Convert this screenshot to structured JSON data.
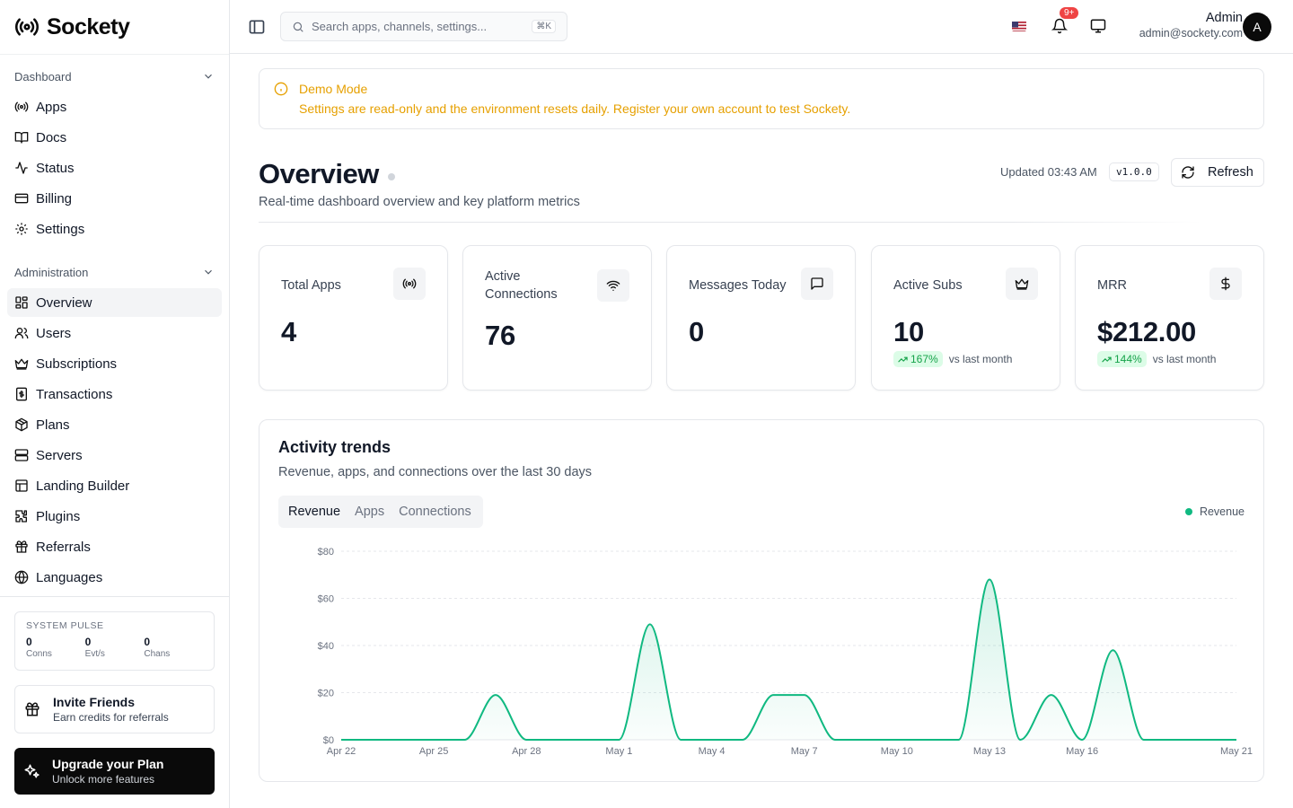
{
  "brand": {
    "name": "Sockety"
  },
  "sidebar": {
    "groups": [
      {
        "label": "Dashboard",
        "items": [
          {
            "label": "Apps",
            "icon": "broadcast-icon"
          },
          {
            "label": "Docs",
            "icon": "book-icon"
          },
          {
            "label": "Status",
            "icon": "activity-icon"
          },
          {
            "label": "Billing",
            "icon": "credit-card-icon"
          },
          {
            "label": "Settings",
            "icon": "gear-icon"
          }
        ]
      },
      {
        "label": "Administration",
        "items": [
          {
            "label": "Overview",
            "icon": "layout-dashboard-icon",
            "active": true
          },
          {
            "label": "Users",
            "icon": "users-icon"
          },
          {
            "label": "Subscriptions",
            "icon": "crown-icon"
          },
          {
            "label": "Transactions",
            "icon": "receipt-icon"
          },
          {
            "label": "Plans",
            "icon": "package-icon"
          },
          {
            "label": "Servers",
            "icon": "server-icon"
          },
          {
            "label": "Landing Builder",
            "icon": "layout-icon"
          },
          {
            "label": "Plugins",
            "icon": "puzzle-icon"
          },
          {
            "label": "Referrals",
            "icon": "gift-icon"
          },
          {
            "label": "Languages",
            "icon": "globe-icon"
          }
        ]
      }
    ],
    "pulse": {
      "title": "SYSTEM PULSE",
      "stats": [
        {
          "value": "0",
          "label": "Conns"
        },
        {
          "value": "0",
          "label": "Evt/s"
        },
        {
          "value": "0",
          "label": "Chans"
        }
      ]
    },
    "invite": {
      "title": "Invite Friends",
      "subtitle": "Earn credits for referrals"
    },
    "upgrade": {
      "title": "Upgrade your Plan",
      "subtitle": "Unlock more features"
    }
  },
  "header": {
    "search_placeholder": "Search apps, channels, settings...",
    "search_shortcut": "⌘K",
    "notifications_badge": "9+",
    "user": {
      "name": "Admin",
      "email": "admin@sockety.com",
      "avatar_letter": "A"
    }
  },
  "demo_banner": {
    "title": "Demo Mode",
    "text": "Settings are read-only and the environment resets daily. Register your own account to test Sockety.",
    "color": "#e6a000"
  },
  "overview": {
    "title": "Overview",
    "subtitle": "Real-time dashboard overview and key platform metrics",
    "updated": "Updated 03:43 AM",
    "version": "v1.0.0",
    "refresh_label": "Refresh"
  },
  "stats": [
    {
      "title": "Total Apps",
      "value": "4",
      "icon": "broadcast-icon"
    },
    {
      "title": "Active Connections",
      "value": "76",
      "icon": "wifi-icon"
    },
    {
      "title": "Messages Today",
      "value": "0",
      "icon": "message-square-icon"
    },
    {
      "title": "Active Subs",
      "value": "10",
      "icon": "crown-icon",
      "trend": "167%",
      "trend_label": "vs last month"
    },
    {
      "title": "MRR",
      "value": "$212.00",
      "icon": "dollar-icon",
      "trend": "144%",
      "trend_label": "vs last month"
    }
  ],
  "activity": {
    "title": "Activity trends",
    "subtitle": "Revenue, apps, and connections over the last 30 days",
    "tabs": [
      "Revenue",
      "Apps",
      "Connections"
    ],
    "active_tab": "Revenue",
    "legend": "Revenue"
  },
  "chart_data": {
    "type": "area",
    "series": [
      {
        "name": "Revenue",
        "color": "#10b981",
        "values": [
          0,
          0,
          0,
          0,
          0,
          19,
          0,
          0,
          0,
          0,
          49,
          0,
          0,
          0,
          19,
          19,
          0,
          0,
          0,
          0,
          0,
          68,
          0,
          19,
          0,
          38,
          0,
          0,
          0,
          0
        ]
      }
    ],
    "x": [
      "Apr 22",
      "Apr 23",
      "Apr 24",
      "Apr 25",
      "Apr 26",
      "Apr 27",
      "Apr 28",
      "Apr 29",
      "Apr 30",
      "May 1",
      "May 2",
      "May 3",
      "May 4",
      "May 5",
      "May 6",
      "May 7",
      "May 8",
      "May 9",
      "May 10",
      "May 11",
      "May 12",
      "May 13",
      "May 14",
      "May 15",
      "May 16",
      "May 17",
      "May 18",
      "May 19",
      "May 20",
      "May 21"
    ],
    "x_tick_labels": [
      "Apr 22",
      "Apr 25",
      "Apr 28",
      "May 1",
      "May 4",
      "May 7",
      "May 10",
      "May 13",
      "May 16",
      "May 21"
    ],
    "y_ticks": [
      "$0",
      "$20",
      "$40",
      "$60",
      "$80"
    ],
    "ylim": [
      0,
      80
    ],
    "grid": true,
    "legend_position": "top-right"
  }
}
